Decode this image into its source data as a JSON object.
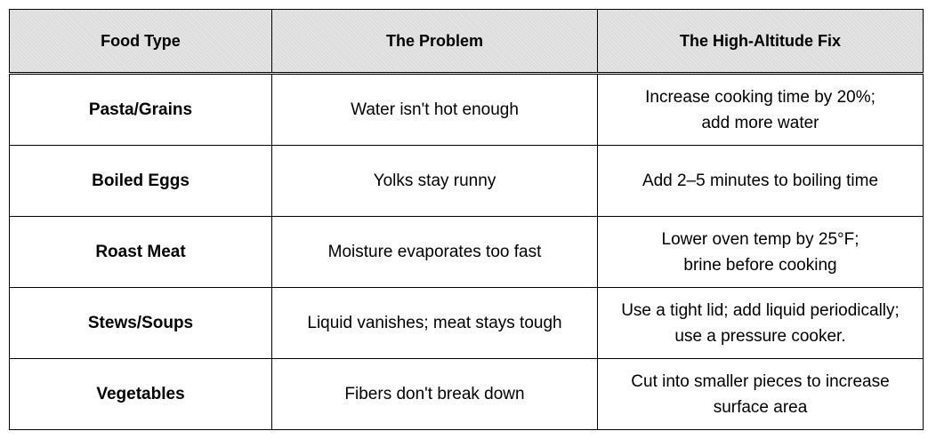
{
  "table": {
    "headers": [
      "Food Type",
      "The Problem",
      "The High-Altitude Fix"
    ],
    "rows": [
      {
        "food_type": "Pasta/Grains",
        "problem": "Water isn't hot enough",
        "fix_line1": "Increase cooking time by 20%;",
        "fix_line2": "add more water"
      },
      {
        "food_type": "Boiled Eggs",
        "problem": "Yolks stay runny",
        "fix_line1": "Add 2–5 minutes to boiling time",
        "fix_line2": ""
      },
      {
        "food_type": "Roast Meat",
        "problem": "Moisture evaporates too fast",
        "fix_line1": "Lower oven temp by 25°F;",
        "fix_line2": "brine before cooking"
      },
      {
        "food_type": "Stews/Soups",
        "problem": "Liquid vanishes; meat stays tough",
        "fix_line1": "Use a tight lid; add liquid periodically;",
        "fix_line2": "use a pressure cooker."
      },
      {
        "food_type": "Vegetables",
        "problem": "Fibers don't break down",
        "fix_line1": "Cut into smaller pieces to increase",
        "fix_line2": "surface area"
      }
    ]
  }
}
